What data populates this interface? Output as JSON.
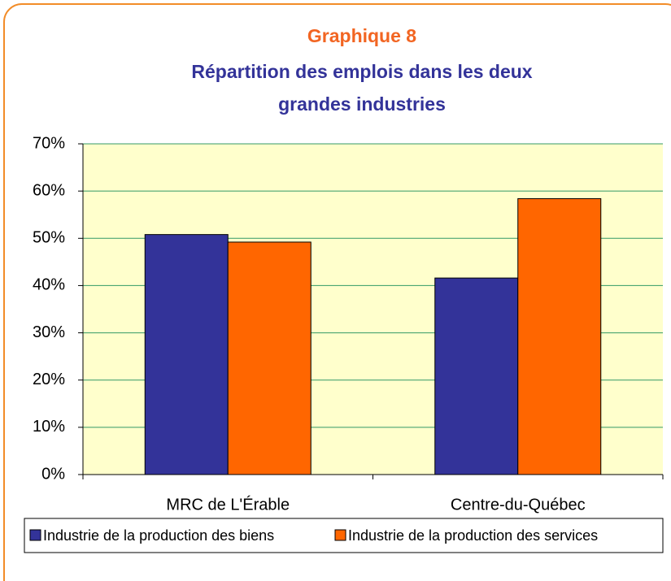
{
  "chart_data": {
    "type": "bar",
    "title": "Graphique 8",
    "subtitle": [
      "Répartition des emplois dans les deux",
      "grandes industries"
    ],
    "categories": [
      "MRC de L'Érable",
      "Centre-du-Québec"
    ],
    "series": [
      {
        "name": "Industrie de la production des biens",
        "color": "#333399",
        "values": [
          50.8,
          41.6
        ]
      },
      {
        "name": "Industrie de la production des services",
        "color": "#FF6600",
        "values": [
          49.2,
          58.4
        ]
      }
    ],
    "ylim": [
      0,
      70
    ],
    "yticks": [
      {
        "value": 0,
        "label": "0%"
      },
      {
        "value": 10,
        "label": "10%"
      },
      {
        "value": 20,
        "label": "20%"
      },
      {
        "value": 30,
        "label": "30%"
      },
      {
        "value": 40,
        "label": "40%"
      },
      {
        "value": 50,
        "label": "50%"
      },
      {
        "value": 60,
        "label": "60%"
      },
      {
        "value": 70,
        "label": "70%"
      }
    ],
    "grid": true,
    "legend": "bottom"
  }
}
